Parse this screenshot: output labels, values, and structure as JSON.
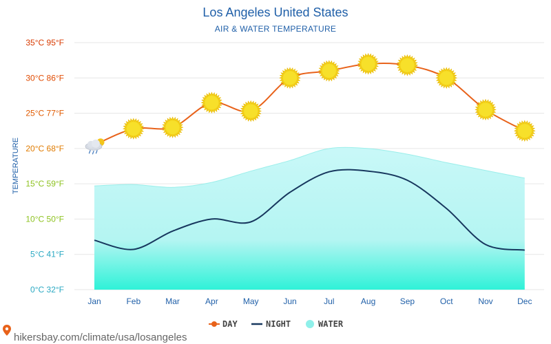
{
  "chart_data": {
    "type": "line",
    "title": "Los Angeles United States",
    "subtitle": "AIR & WATER TEMPERATURE",
    "ylabel": "TEMPERATURE",
    "xlabel": "",
    "ylim": [
      0,
      35
    ],
    "grid": true,
    "legend_position": "bottom-center",
    "categories": [
      "Jan",
      "Feb",
      "Mar",
      "Apr",
      "May",
      "Jun",
      "Jul",
      "Aug",
      "Sep",
      "Oct",
      "Nov",
      "Dec"
    ],
    "y_ticks": [
      {
        "value": 0,
        "label": "0°C 32°F",
        "color": "#29a8c2"
      },
      {
        "value": 5,
        "label": "5°C 41°F",
        "color": "#29a8c2"
      },
      {
        "value": 10,
        "label": "10°C 50°F",
        "color": "#8dc21f"
      },
      {
        "value": 15,
        "label": "15°C 59°F",
        "color": "#8dc21f"
      },
      {
        "value": 20,
        "label": "20°C 68°F",
        "color": "#e07b00"
      },
      {
        "value": 25,
        "label": "25°C 77°F",
        "color": "#e05a00"
      },
      {
        "value": 30,
        "label": "30°C 86°F",
        "color": "#e04a00"
      },
      {
        "value": 35,
        "label": "35°C 95°F",
        "color": "#d83a00"
      }
    ],
    "series": [
      {
        "name": "DAY",
        "key": "day",
        "color": "#e8621a",
        "values": [
          20.5,
          22.8,
          23.0,
          26.5,
          25.3,
          30.0,
          31.0,
          32.0,
          31.8,
          30.0,
          25.5,
          22.5
        ],
        "icons": [
          "partly-cloudy-rain-icon",
          "sun-icon",
          "sun-icon",
          "sun-icon",
          "sun-icon",
          "sun-icon",
          "sun-icon",
          "sun-icon",
          "sun-icon",
          "sun-icon",
          "sun-icon",
          "sun-icon"
        ]
      },
      {
        "name": "NIGHT",
        "key": "night",
        "color": "#17375e",
        "values": [
          7.0,
          5.7,
          8.3,
          10.0,
          9.6,
          13.8,
          16.7,
          16.8,
          15.5,
          11.5,
          6.4,
          5.6
        ]
      },
      {
        "name": "WATER",
        "key": "water",
        "color": "#8ff0ea",
        "values": [
          14.7,
          14.9,
          14.5,
          15.2,
          16.8,
          18.3,
          20.0,
          20.0,
          19.2,
          18.0,
          16.9,
          15.8
        ]
      }
    ]
  },
  "footer": {
    "watermark": "hikersbay.com/climate/usa/losangeles",
    "pin_icon": "map-pin-icon",
    "pin_color": "#e8621a"
  }
}
